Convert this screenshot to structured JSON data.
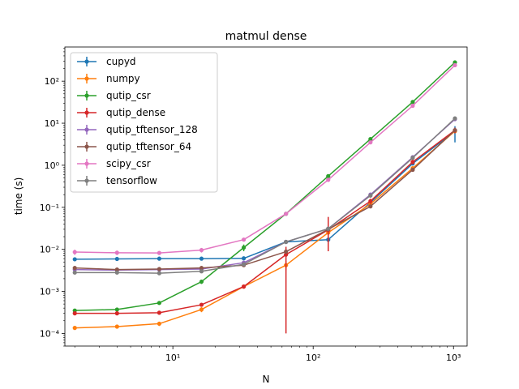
{
  "chart_data": {
    "type": "line",
    "title": "matmul dense",
    "xlabel": "N",
    "ylabel": "time (s)",
    "xscale": "log",
    "yscale": "log",
    "xlim": [
      1.7,
      1250
    ],
    "ylim": [
      5e-05,
      650
    ],
    "grid": false,
    "legend_position": "upper-left",
    "x": [
      2,
      4,
      8,
      16,
      32,
      64,
      128,
      256,
      512,
      1024
    ],
    "x_ticks": [
      10,
      100,
      1000
    ],
    "x_tick_labels": [
      "10¹",
      "10²",
      "10³"
    ],
    "y_ticks": [
      0.0001,
      0.001,
      0.01,
      0.1,
      1,
      10,
      100
    ],
    "y_tick_labels": [
      "10⁻⁴",
      "10⁻³",
      "10⁻²",
      "10⁻¹",
      "10⁰",
      "10¹",
      "10²"
    ],
    "series": [
      {
        "name": "cupyd",
        "color": "#1f77b4",
        "values": [
          0.0058,
          0.0059,
          0.006,
          0.006,
          0.0061,
          0.015,
          0.017,
          0.13,
          1.1,
          6.5
        ],
        "errors": [
          [
            0.0002,
            0.0002
          ],
          [
            0.0002,
            0.0002
          ],
          [
            0.0002,
            0.0002
          ],
          [
            0.0002,
            0.0002
          ],
          [
            0.0003,
            0.0003
          ],
          [
            0.001,
            0.001
          ],
          [
            0.002,
            0.002
          ],
          [
            0.01,
            0.01
          ],
          [
            0.1,
            0.1
          ],
          [
            3,
            2
          ]
        ]
      },
      {
        "name": "numpy",
        "color": "#ff7f0e",
        "values": [
          0.000135,
          0.000145,
          0.00017,
          0.00037,
          0.0013,
          0.0042,
          0.025,
          0.12,
          0.85,
          6.5
        ],
        "errors": [
          [
            1e-05,
            1e-05
          ],
          [
            1e-05,
            1e-05
          ],
          [
            2e-05,
            2e-05
          ],
          [
            5e-05,
            5e-05
          ],
          [
            0.0001,
            0.0001
          ],
          [
            0.001,
            0.001
          ],
          [
            0.005,
            0.005
          ],
          [
            0.01,
            0.01
          ],
          [
            0.05,
            0.05
          ],
          [
            0.5,
            0.5
          ]
        ]
      },
      {
        "name": "qutip_csr",
        "color": "#2ca02c",
        "values": [
          0.00035,
          0.00037,
          0.00053,
          0.0017,
          0.011,
          0.07,
          0.55,
          4.2,
          32,
          280
        ],
        "errors": [
          [
            3e-05,
            3e-05
          ],
          [
            3e-05,
            3e-05
          ],
          [
            5e-05,
            5e-05
          ],
          [
            0.0002,
            0.0002
          ],
          [
            0.002,
            0.002
          ],
          [
            0.005,
            0.005
          ],
          [
            0.05,
            0.05
          ],
          [
            0.3,
            0.3
          ],
          [
            3,
            3
          ],
          [
            20,
            20
          ]
        ]
      },
      {
        "name": "qutip_dense",
        "color": "#d62728",
        "values": [
          0.0003,
          0.0003,
          0.00031,
          0.00048,
          0.0013,
          0.0075,
          0.029,
          0.14,
          1.2,
          6.8
        ],
        "errors": [
          [
            2e-05,
            2e-05
          ],
          [
            2e-05,
            2e-05
          ],
          [
            3e-05,
            3e-05
          ],
          [
            4e-05,
            4e-05
          ],
          [
            0.0001,
            0.0001
          ],
          [
            0.0074,
            0.004
          ],
          [
            0.02,
            0.03
          ],
          [
            0.02,
            0.02
          ],
          [
            0.15,
            0.15
          ],
          [
            1,
            1
          ]
        ]
      },
      {
        "name": "qutip_tftensor_128",
        "color": "#9467bd",
        "values": [
          0.0033,
          0.0032,
          0.0033,
          0.0034,
          0.0048,
          0.015,
          0.031,
          0.2,
          1.55,
          12.5
        ],
        "errors": [
          [
            0.0002,
            0.0002
          ],
          [
            0.0002,
            0.0002
          ],
          [
            0.0002,
            0.0002
          ],
          [
            0.0002,
            0.0002
          ],
          [
            0.0003,
            0.0003
          ],
          [
            0.001,
            0.001
          ],
          [
            0.003,
            0.003
          ],
          [
            0.02,
            0.02
          ],
          [
            0.1,
            0.1
          ],
          [
            1,
            1
          ]
        ]
      },
      {
        "name": "qutip_tftensor_64",
        "color": "#8c564b",
        "values": [
          0.0036,
          0.0033,
          0.0034,
          0.0036,
          0.0042,
          0.0088,
          0.03,
          0.105,
          0.78,
          6.8
        ],
        "errors": [
          [
            0.0002,
            0.0002
          ],
          [
            0.0002,
            0.0002
          ],
          [
            0.0002,
            0.0002
          ],
          [
            0.0002,
            0.0002
          ],
          [
            0.0003,
            0.0003
          ],
          [
            0.0005,
            0.0005
          ],
          [
            0.003,
            0.003
          ],
          [
            0.01,
            0.01
          ],
          [
            0.05,
            0.05
          ],
          [
            0.5,
            0.5
          ]
        ]
      },
      {
        "name": "scipy_csr",
        "color": "#e377c2",
        "values": [
          0.0086,
          0.0083,
          0.0082,
          0.0096,
          0.017,
          0.07,
          0.45,
          3.5,
          26,
          240
        ],
        "errors": [
          [
            0.0012,
            0.0012
          ],
          [
            0.001,
            0.001
          ],
          [
            0.0008,
            0.0008
          ],
          [
            0.0012,
            0.0012
          ],
          [
            0.001,
            0.001
          ],
          [
            0.005,
            0.005
          ],
          [
            0.04,
            0.04
          ],
          [
            0.3,
            0.3
          ],
          [
            2,
            2
          ],
          [
            15,
            15
          ]
        ]
      },
      {
        "name": "tensorflow",
        "color": "#7f7f7f",
        "values": [
          0.0028,
          0.0028,
          0.0027,
          0.003,
          0.0044,
          0.015,
          0.031,
          0.19,
          1.5,
          13
        ],
        "errors": [
          [
            0.0002,
            0.0002
          ],
          [
            0.0002,
            0.0002
          ],
          [
            0.0002,
            0.0002
          ],
          [
            0.0002,
            0.0002
          ],
          [
            0.0003,
            0.0003
          ],
          [
            0.001,
            0.001
          ],
          [
            0.003,
            0.003
          ],
          [
            0.02,
            0.02
          ],
          [
            0.1,
            0.1
          ],
          [
            1,
            1
          ]
        ]
      }
    ]
  }
}
